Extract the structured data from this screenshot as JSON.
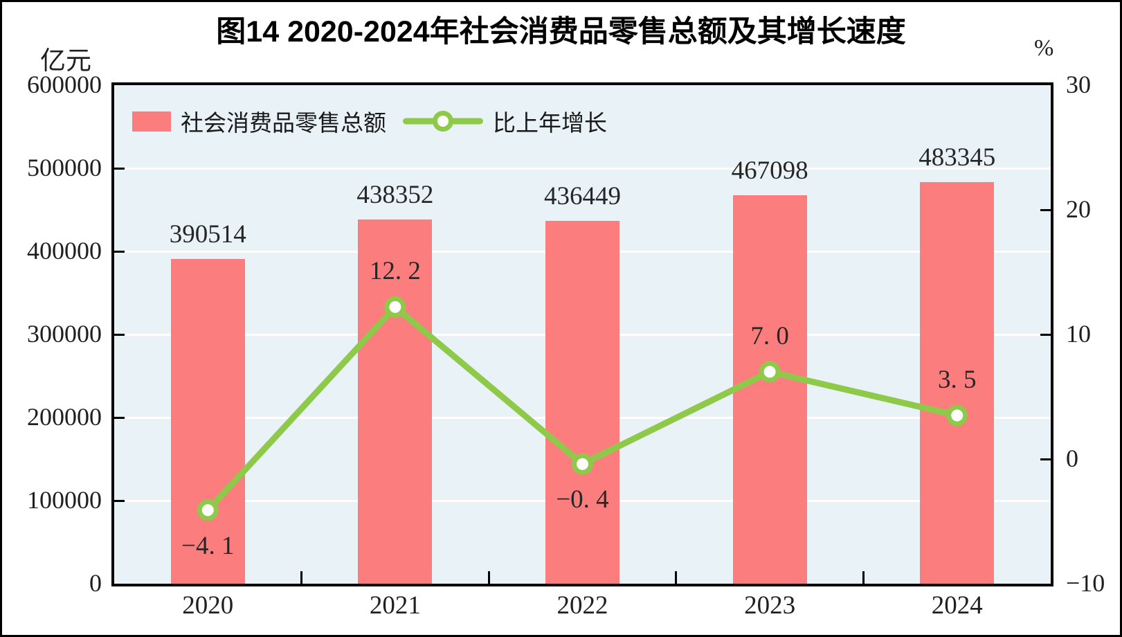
{
  "figure_label": "图14",
  "chart_data": {
    "type": "bar",
    "combo_types": [
      "bar",
      "line"
    ],
    "title": "图14  2020-2024年社会消费品零售总额及其增长速度",
    "categories": [
      "2020",
      "2021",
      "2022",
      "2023",
      "2024"
    ],
    "series": [
      {
        "name": "社会消费品零售总额",
        "type": "bar",
        "axis": "left",
        "values": [
          390514,
          438352,
          436449,
          467098,
          483345
        ],
        "labels": [
          "390514",
          "438352",
          "436449",
          "467098",
          "483345"
        ],
        "color": "#FB7D7D"
      },
      {
        "name": "比上年增长",
        "type": "line",
        "axis": "right",
        "values": [
          -4.1,
          12.2,
          -0.4,
          7.0,
          3.5
        ],
        "labels": [
          "−4. 1",
          "12. 2",
          "−0. 4",
          "7. 0",
          "3. 5"
        ],
        "label_side": [
          "below",
          "above",
          "below",
          "above",
          "above"
        ],
        "color": "#8FC94A",
        "marker": "circle-white-fill"
      }
    ],
    "left_axis": {
      "unit": "亿元",
      "min": 0,
      "max": 600000,
      "step": 100000,
      "tick_labels": [
        "600000",
        "500000",
        "400000",
        "300000",
        "200000",
        "100000",
        "0"
      ]
    },
    "right_axis": {
      "unit": "%",
      "min": -10,
      "max": 30,
      "step": 10,
      "tick_labels": [
        "30",
        "20",
        "10",
        "0",
        "−10"
      ]
    },
    "grid": "horizontal-white",
    "legend_position": "top-left-inside",
    "colors": {
      "plot_background": "#E9F2F6",
      "gridline": "#FFFFFF",
      "axis": "#000000",
      "bar": "#FB7D7D",
      "line": "#8FC94A",
      "marker_fill": "#FFFFFF",
      "text": "#1F1F1F"
    }
  }
}
